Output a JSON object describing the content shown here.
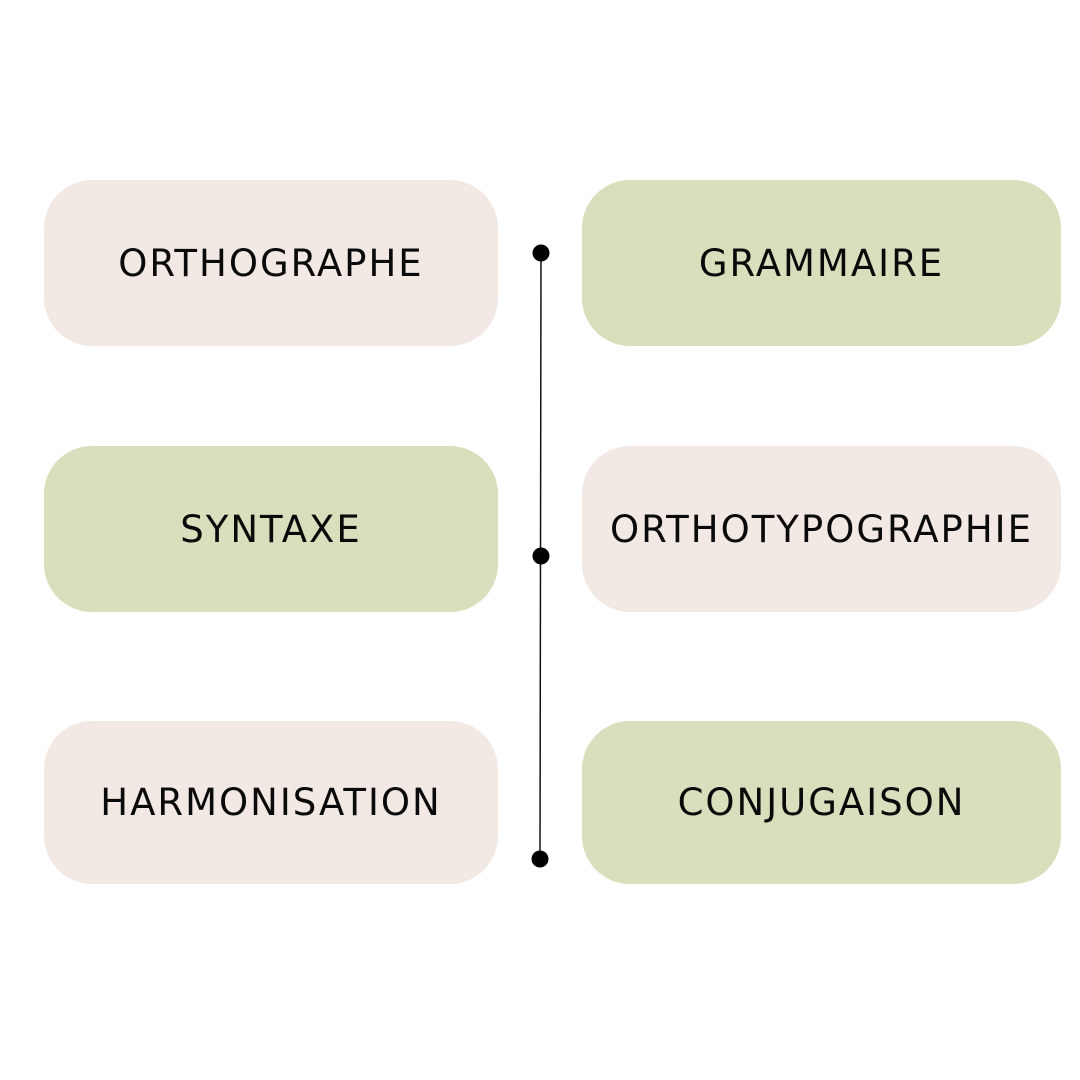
{
  "colors": {
    "pink": "#f2e9e4",
    "green": "#d9dfbc",
    "line": "#111111",
    "text": "#0a0a0a"
  },
  "left": [
    {
      "label": "ORTHOGRAPHE",
      "color": "pink"
    },
    {
      "label": "SYNTAXE",
      "color": "green"
    },
    {
      "label": "HARMONISATION",
      "color": "pink"
    }
  ],
  "right": [
    {
      "label": "GRAMMAIRE",
      "color": "green"
    },
    {
      "label": "ORTHOTYPOGRAPHIE",
      "color": "pink"
    },
    {
      "label": "CONJUGAISON",
      "color": "green"
    }
  ]
}
